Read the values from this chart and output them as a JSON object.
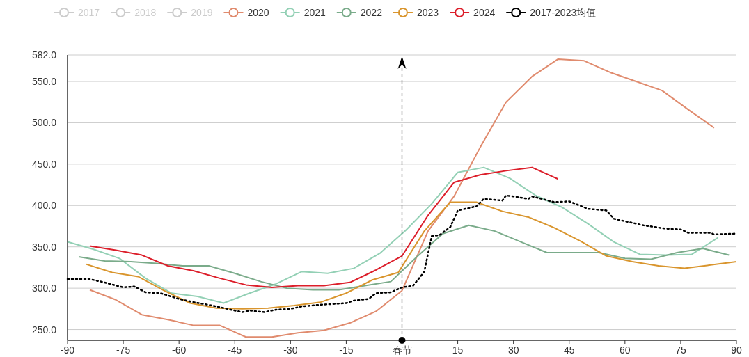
{
  "chart_data": {
    "type": "line",
    "xlim": [
      -90,
      90
    ],
    "xticks": [
      -90,
      -75,
      -60,
      -45,
      -30,
      -15,
      {
        "value": 0,
        "label": "春节"
      },
      15,
      30,
      45,
      60,
      75,
      90
    ],
    "ylim": [
      237,
      582
    ],
    "yticks": [
      {
        "value": 250,
        "label": "250.0"
      },
      {
        "value": 300,
        "label": "300.0"
      },
      {
        "value": 350,
        "label": "350.0"
      },
      {
        "value": 400,
        "label": "400.0"
      },
      {
        "value": 450,
        "label": "450.0"
      },
      {
        "value": 500,
        "label": "500.0"
      },
      {
        "value": 550,
        "label": "550.0"
      },
      {
        "value": 582,
        "label": "582.0"
      }
    ],
    "grid": "y",
    "legend": "top",
    "marker": "none",
    "line_style": "solid",
    "ref_lines": [
      {
        "axis": "x",
        "value": 0,
        "color": "#000000",
        "line_style": "dashed"
      }
    ],
    "series": [
      {
        "name": "2017",
        "color": "#cccccc"
      },
      {
        "name": "2018",
        "color": "#cccccc"
      },
      {
        "name": "2019",
        "color": "#cccccc"
      },
      {
        "name": "2020",
        "color": "#e08b6e",
        "x": [
          -84,
          -77,
          -70,
          -63,
          -56,
          -49,
          -42,
          -35,
          -28,
          -21,
          -14,
          -7,
          0,
          7,
          14,
          21,
          28,
          35,
          42,
          49,
          56,
          63,
          70,
          77,
          84
        ],
        "values": [
          298,
          286,
          268,
          262,
          255,
          255,
          241,
          241,
          246,
          249,
          258,
          272,
          297,
          369,
          411,
          470,
          525,
          556,
          577,
          575,
          561,
          550,
          539,
          516,
          494
        ]
      },
      {
        "name": "2021",
        "color": "#93d0b5",
        "x": [
          -90,
          -83,
          -76,
          -69,
          -62,
          -55,
          -48,
          -41,
          -34,
          -27,
          -20,
          -13,
          -6,
          1,
          8,
          15,
          22,
          29,
          36,
          43,
          50,
          57,
          64,
          71,
          78,
          85
        ],
        "values": [
          356,
          347,
          336,
          312,
          294,
          290,
          282,
          294,
          305,
          320,
          318,
          324,
          342,
          370,
          402,
          440,
          446,
          433,
          412,
          398,
          378,
          356,
          341,
          340,
          341,
          361
        ]
      },
      {
        "name": "2022",
        "color": "#7aab8a",
        "x": [
          -87,
          -80,
          -73,
          -66,
          -59,
          -52,
          -45,
          -38,
          -31,
          -24,
          -17,
          -10,
          -3,
          4,
          11,
          18,
          25,
          32,
          39,
          46,
          53,
          60,
          67,
          74,
          81,
          88
        ],
        "values": [
          338,
          333,
          332,
          330,
          327,
          327,
          318,
          308,
          300,
          298,
          298,
          303,
          308,
          338,
          366,
          376,
          369,
          356,
          343,
          343,
          343,
          336,
          335,
          343,
          348,
          340
        ]
      },
      {
        "name": "2023",
        "color": "#d9952d",
        "x": [
          -85,
          -78,
          -71,
          -64,
          -57,
          -50,
          -43,
          -36,
          -29,
          -22,
          -15,
          -8,
          -1,
          6,
          13,
          20,
          27,
          34,
          41,
          48,
          55,
          62,
          69,
          76,
          83,
          90
        ],
        "values": [
          329,
          319,
          314,
          297,
          282,
          276,
          275,
          276,
          279,
          283,
          294,
          310,
          319,
          369,
          404,
          404,
          393,
          386,
          373,
          357,
          339,
          332,
          327,
          324,
          328,
          332
        ]
      },
      {
        "name": "2024",
        "color": "#dc1e2a",
        "x": [
          -84,
          -77,
          -70,
          -63,
          -56,
          -49,
          -42,
          -35,
          -28,
          -21,
          -14,
          -7,
          0,
          7,
          14,
          21,
          28,
          35,
          42
        ],
        "values": [
          351,
          346,
          340,
          327,
          321,
          312,
          304,
          301,
          303,
          303,
          307,
          322,
          339,
          388,
          428,
          437,
          442,
          446,
          432
        ]
      },
      {
        "name": "2017-2023均值",
        "color": "#000000",
        "line_style": "dotted",
        "x": [
          -90,
          -84,
          -81,
          -75,
          -72,
          -69,
          -65,
          -60,
          -56,
          -51,
          -45,
          -43,
          -41,
          -37,
          -34,
          -30,
          -27,
          -22,
          -15,
          -13,
          -9,
          -7,
          -3,
          0,
          3,
          6,
          8,
          10,
          13,
          15,
          20,
          22,
          27,
          28,
          30,
          34,
          35,
          41,
          45,
          50,
          55,
          57,
          60,
          65,
          71,
          75,
          77,
          83,
          84,
          90
        ],
        "values": [
          311,
          311,
          308,
          301,
          302,
          295,
          294,
          287,
          283,
          279,
          273,
          271,
          273,
          271,
          274,
          275,
          278,
          280,
          282,
          285,
          287,
          294,
          295,
          301,
          303,
          320,
          363,
          364,
          374,
          394,
          399,
          408,
          406,
          412,
          411,
          408,
          411,
          404,
          405,
          396,
          394,
          384,
          381,
          376,
          372,
          371,
          367,
          367,
          365,
          366
        ]
      }
    ]
  }
}
